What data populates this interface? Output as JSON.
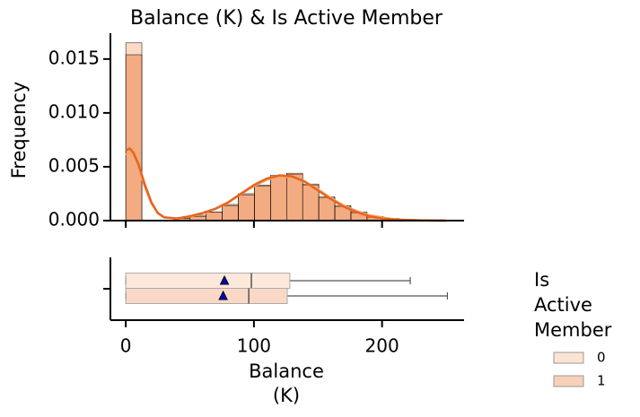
{
  "chart_data": [
    {
      "type": "histogram",
      "title": "Balance (K) & Is Active Member",
      "ylabel": "Frequency",
      "bins": [
        0,
        12.55,
        25.1,
        37.65,
        50.2,
        62.75,
        75.3,
        87.85,
        100.4,
        112.95,
        125.5,
        138.05,
        150.6,
        163.15,
        175.7,
        188.25,
        200.8,
        213.35,
        225.9,
        238.45,
        251
      ],
      "xlim": [
        -12,
        264
      ],
      "ylim": [
        0,
        0.0174
      ],
      "yticks": [
        {
          "value": 0,
          "label": "0.000"
        },
        {
          "value": 0.005,
          "label": "0.005"
        },
        {
          "value": 0.01,
          "label": "0.010"
        },
        {
          "value": 0.015,
          "label": "0.015"
        }
      ],
      "kde_x": [
        0,
        3,
        6,
        10,
        15,
        20,
        25,
        30,
        40,
        50,
        60,
        70,
        80,
        90,
        100,
        110,
        120,
        130,
        140,
        150,
        160,
        170,
        180,
        190,
        200,
        210,
        220,
        230,
        240,
        250
      ],
      "legend_title": [
        "Is",
        "Active",
        "Member"
      ],
      "series": [
        {
          "name": "0",
          "color": "#f4a66e",
          "values": [
            0.0165,
            0,
            0,
            0.0002,
            0.0005,
            0.0008,
            0.0015,
            0.0025,
            0.0033,
            0.0042,
            0.0043,
            0.0033,
            0.0021,
            0.0013,
            0.0007,
            0.0003,
            0.0001,
            5e-05,
            2e-05,
            1e-05
          ],
          "kde": [
            0.0061,
            0.0063,
            0.006,
            0.0049,
            0.0031,
            0.0016,
            0.0007,
            0.0003,
            0.0002,
            0.0004,
            0.0007,
            0.0011,
            0.0017,
            0.0025,
            0.0032,
            0.0038,
            0.0041,
            0.004,
            0.0036,
            0.0029,
            0.0021,
            0.0014,
            0.0009,
            0.0005,
            0.0003,
            0.0001,
            6e-05,
            3e-05,
            1e-05,
            0
          ]
        },
        {
          "name": "1",
          "color": "#e8641c",
          "values": [
            0.0154,
            0,
            0,
            0.0002,
            0.0004,
            0.0008,
            0.0014,
            0.0024,
            0.0032,
            0.0041,
            0.0044,
            0.0034,
            0.0022,
            0.0014,
            0.0008,
            0.0004,
            0.0002,
            0.0001,
            3e-05,
            2e-05
          ],
          "kde": [
            0.0065,
            0.0067,
            0.0063,
            0.0052,
            0.0033,
            0.0017,
            0.0007,
            0.0003,
            0.0002,
            0.0004,
            0.0007,
            0.0011,
            0.0017,
            0.0025,
            0.0033,
            0.0039,
            0.0042,
            0.0041,
            0.0036,
            0.0028,
            0.002,
            0.0013,
            0.0008,
            0.0004,
            0.0002,
            0.0001,
            5e-05,
            2e-05,
            1e-05,
            0
          ]
        }
      ]
    },
    {
      "type": "box",
      "xlabel": [
        "Balance",
        "(K)"
      ],
      "xlim": [
        -12,
        264
      ],
      "xticks": [
        0,
        100,
        200
      ],
      "series": [
        {
          "min": 0,
          "q1": 0,
          "median": 98,
          "q3": 128,
          "max": 222,
          "mean": 77
        },
        {
          "min": 0,
          "q1": 0,
          "median": 96,
          "q3": 126,
          "max": 251,
          "mean": 76
        }
      ]
    }
  ]
}
